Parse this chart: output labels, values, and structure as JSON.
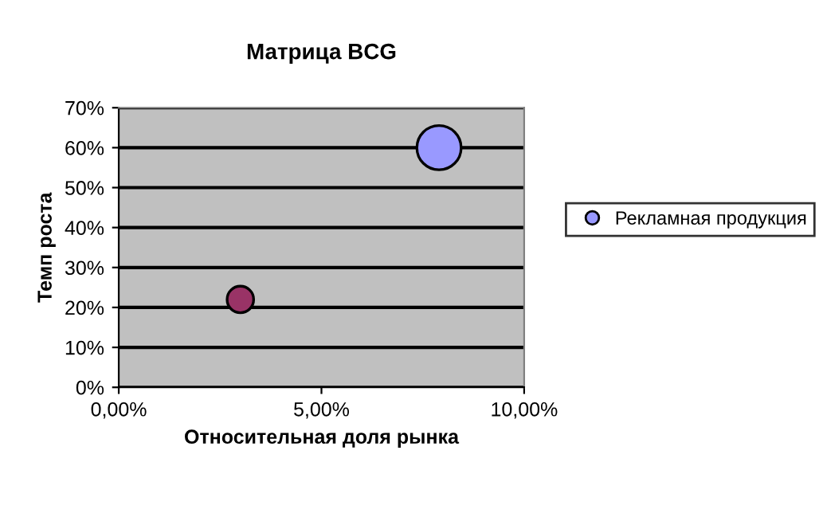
{
  "chart_data": {
    "type": "bubble",
    "title": "Матрица BCG",
    "xlabel": "Относительная доля рынка",
    "ylabel": "Темп роста",
    "series": [
      {
        "name": "Рекламная продукция",
        "color": "#9999ff",
        "colors": [
          "#993366",
          "#9999ff"
        ],
        "x": [
          3.0,
          7.9
        ],
        "values": [
          22,
          60
        ],
        "sizes": [
          0.36,
          1
        ]
      }
    ],
    "xlim": [
      0,
      10
    ],
    "xticks": [
      {
        "value": 0,
        "label": "0,00%"
      },
      {
        "value": 5,
        "label": "5,00%"
      },
      {
        "value": 10,
        "label": "10,00%"
      }
    ],
    "ylim": [
      0,
      70
    ],
    "yticks": [
      {
        "value": 0,
        "label": "0%"
      },
      {
        "value": 10,
        "label": "10%"
      },
      {
        "value": 20,
        "label": "20%"
      },
      {
        "value": 30,
        "label": "30%"
      },
      {
        "value": 40,
        "label": "40%"
      },
      {
        "value": 50,
        "label": "50%"
      },
      {
        "value": 60,
        "label": "60%"
      },
      {
        "value": 70,
        "label": "70%"
      }
    ],
    "grid": "y",
    "legend": "right"
  }
}
